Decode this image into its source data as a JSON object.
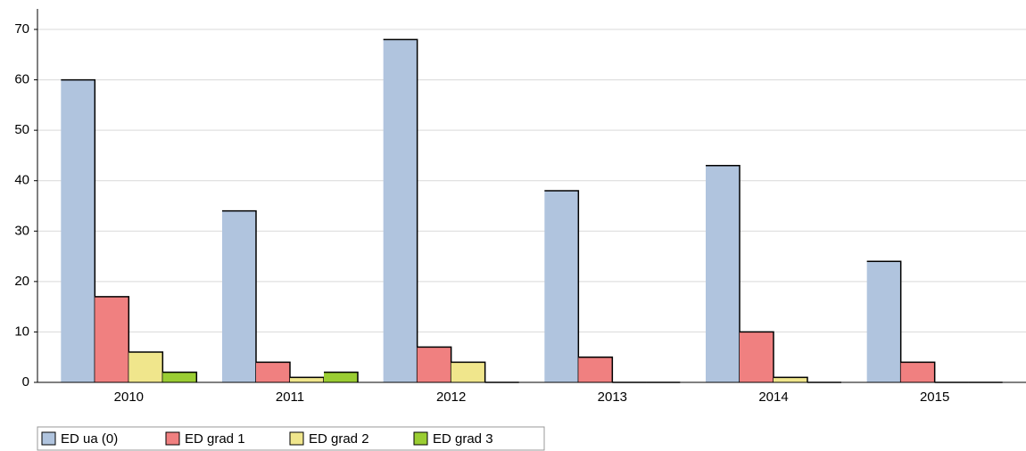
{
  "chart_data": {
    "type": "bar",
    "categories": [
      "2010",
      "2011",
      "2012",
      "2013",
      "2014",
      "2015"
    ],
    "series": [
      {
        "name": "ED ua (0)",
        "color": "#b0c4de",
        "values": [
          60,
          34,
          68,
          38,
          43,
          24
        ]
      },
      {
        "name": "ED grad 1",
        "color": "#f08080",
        "values": [
          17,
          4,
          7,
          5,
          10,
          4
        ]
      },
      {
        "name": "ED grad 2",
        "color": "#f0e68c",
        "values": [
          6,
          1,
          4,
          0,
          1,
          0
        ]
      },
      {
        "name": "ED grad 3",
        "color": "#9acd32",
        "values": [
          2,
          2,
          0,
          0,
          0,
          0
        ]
      }
    ],
    "ylim": [
      0,
      70
    ],
    "yticks": [
      0,
      10,
      20,
      30,
      40,
      50,
      60,
      70
    ],
    "grid": true
  }
}
